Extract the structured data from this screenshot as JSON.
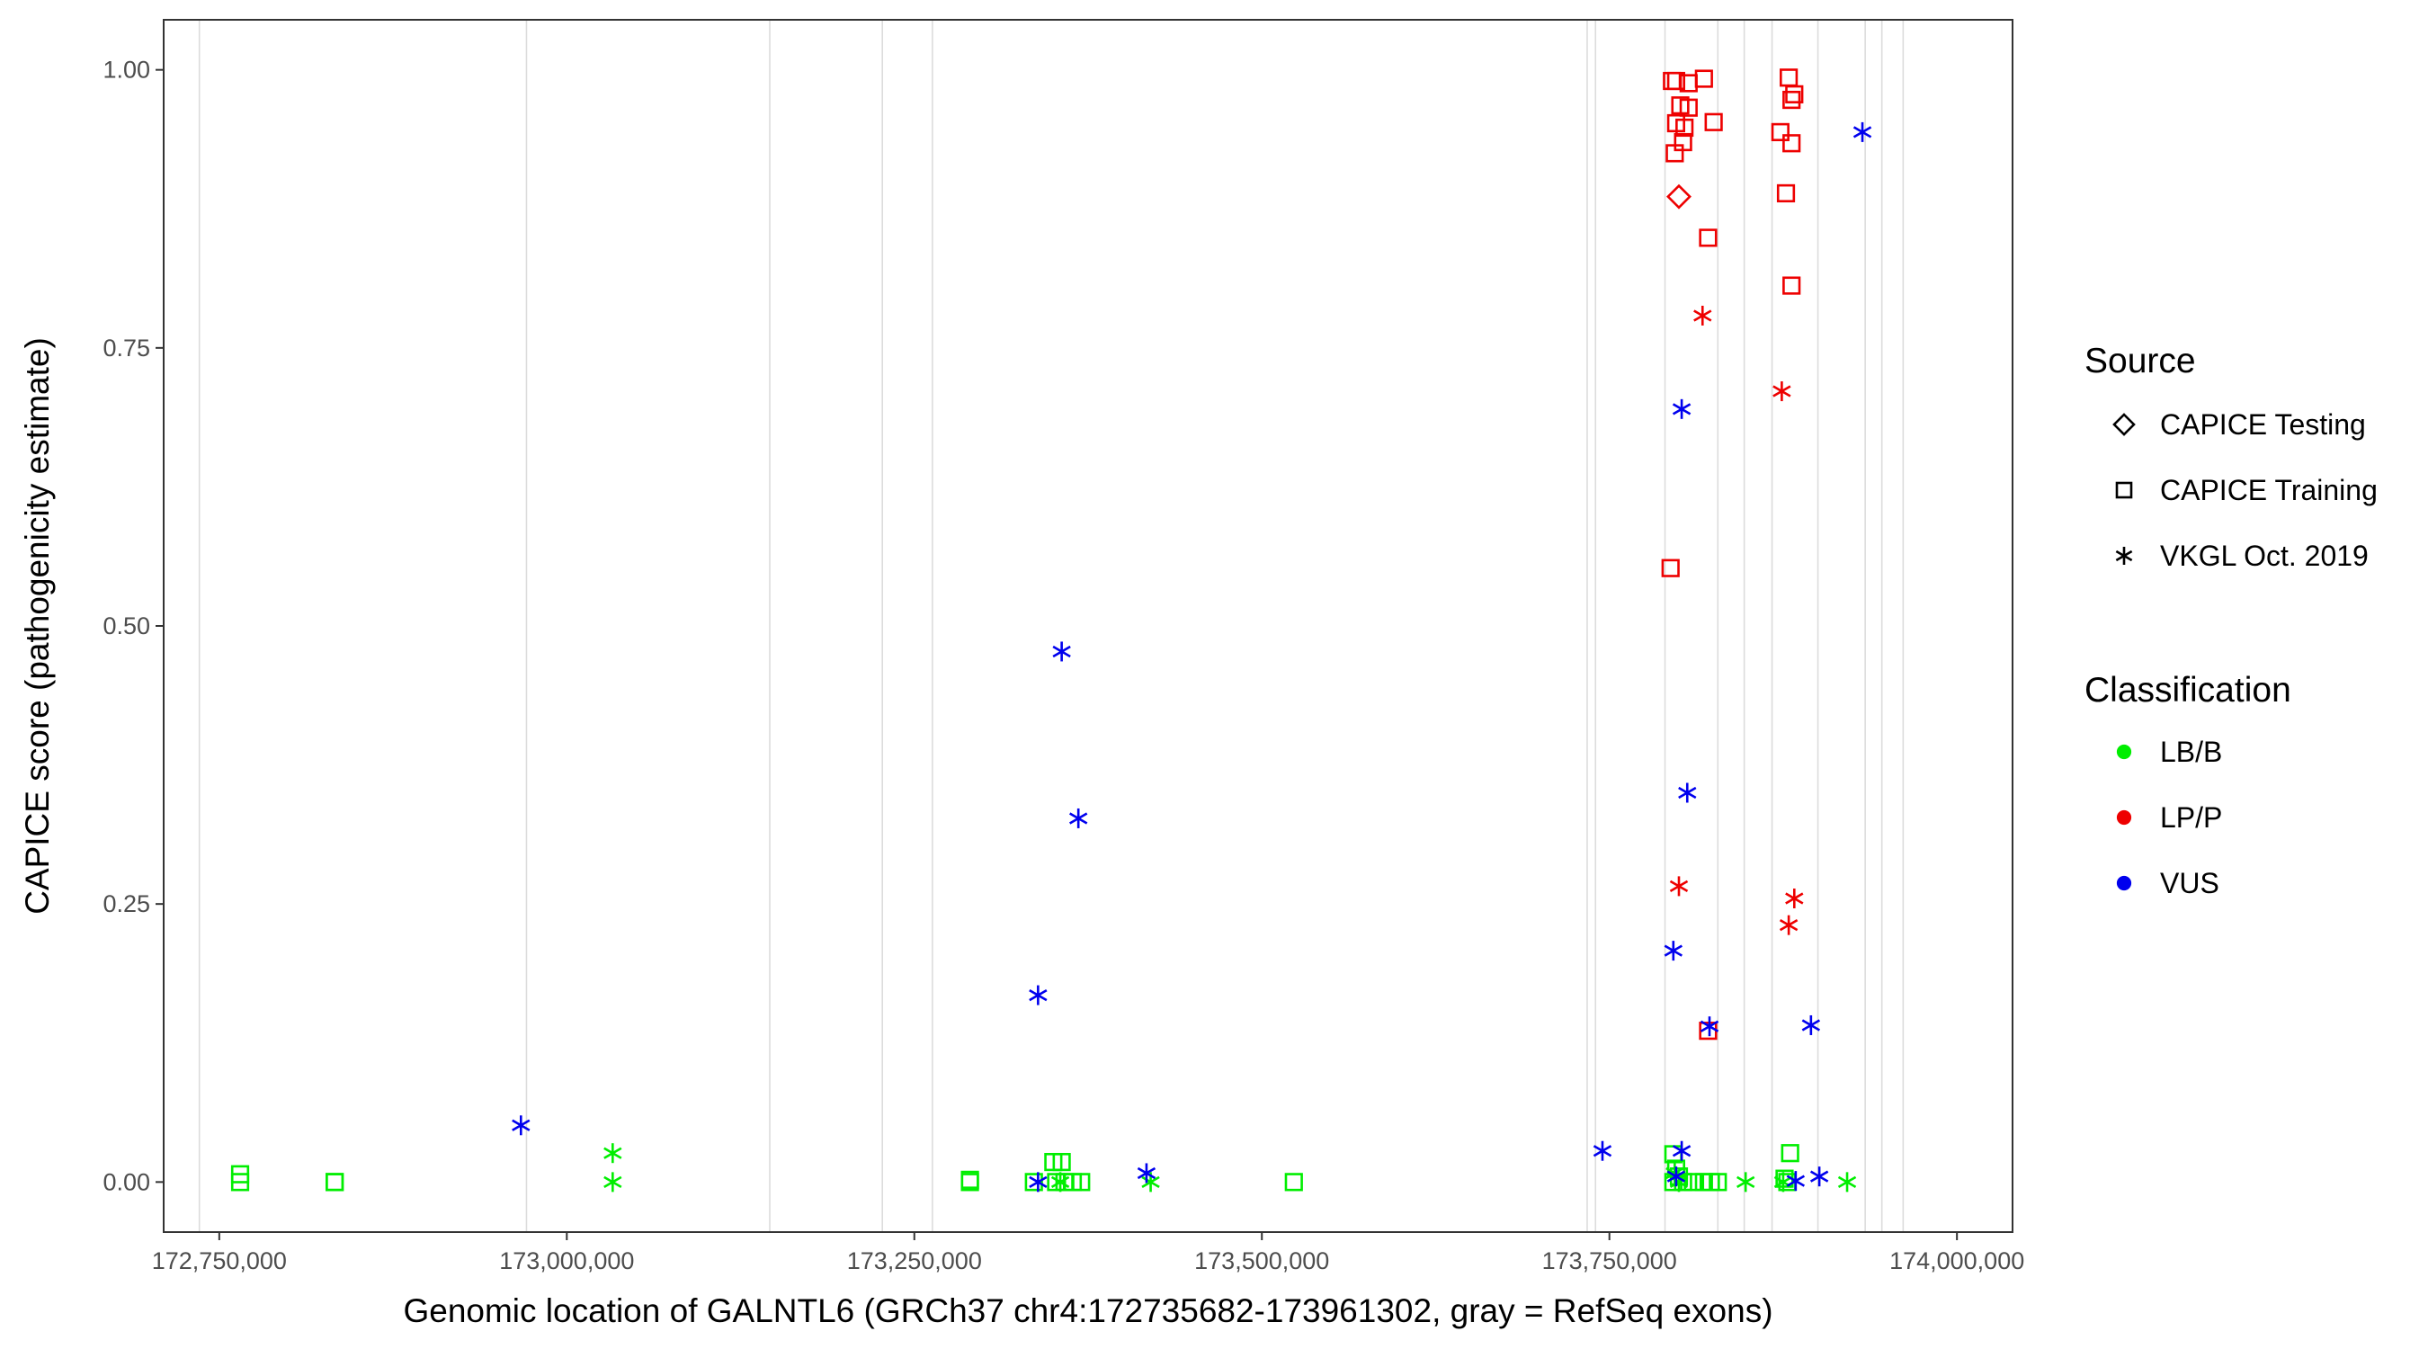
{
  "chart_data": {
    "type": "scatter",
    "xlabel": "Genomic location of GALNTL6 (GRCh37 chr4:172735682-173961302, gray = RefSeq exons)",
    "ylabel": "CAPICE score (pathogenicity estimate)",
    "xlim": [
      172710000,
      174040000
    ],
    "ylim": [
      -0.045,
      1.045
    ],
    "x_ticks": [
      172750000,
      173000000,
      173250000,
      173500000,
      173750000,
      174000000
    ],
    "x_tick_labels": [
      "172,750,000",
      "173,000,000",
      "173,250,000",
      "173,500,000",
      "173,750,000",
      "174,000,000"
    ],
    "y_ticks": [
      0,
      0.25,
      0.5,
      0.75,
      1
    ],
    "y_tick_labels": [
      "0.00",
      "0.25",
      "0.50",
      "0.75",
      "1.00"
    ],
    "exon_positions": [
      172735682,
      172971000,
      173146000,
      173227000,
      173263000,
      173734000,
      173740000,
      173790000,
      173828000,
      173847000,
      173867000,
      173900000,
      173934000,
      173946000,
      173961302
    ],
    "grid": false,
    "legend_position": "right",
    "legend": {
      "source_title": "Source",
      "source_items": [
        {
          "label": "CAPICE Testing",
          "shape": "diamond"
        },
        {
          "label": "CAPICE Training",
          "shape": "square"
        },
        {
          "label": "VKGL Oct. 2019",
          "shape": "asterisk"
        }
      ],
      "class_title": "Classification",
      "class_items": [
        {
          "label": "LB/B",
          "color": "#00ee00"
        },
        {
          "label": "LP/P",
          "color": "#ee0000"
        },
        {
          "label": "VUS",
          "color": "#0000ee"
        }
      ]
    },
    "series": [
      {
        "name": "LB/B",
        "color": "#00ee00",
        "points": [
          {
            "x": 172765000,
            "y": 0.007,
            "shape": "square"
          },
          {
            "x": 172765000,
            "y": 0.0,
            "shape": "square"
          },
          {
            "x": 172833000,
            "y": 0.0,
            "shape": "square"
          },
          {
            "x": 172833000,
            "y": 0.0,
            "shape": "square"
          },
          {
            "x": 173033000,
            "y": 0.026,
            "shape": "asterisk"
          },
          {
            "x": 173033000,
            "y": 0.0,
            "shape": "asterisk"
          },
          {
            "x": 173290000,
            "y": 0.002,
            "shape": "square"
          },
          {
            "x": 173290000,
            "y": 0.0,
            "shape": "square"
          },
          {
            "x": 173336000,
            "y": 0.0,
            "shape": "square"
          },
          {
            "x": 173350000,
            "y": 0.018,
            "shape": "square"
          },
          {
            "x": 173356000,
            "y": 0.018,
            "shape": "square"
          },
          {
            "x": 173352000,
            "y": 0.0,
            "shape": "square"
          },
          {
            "x": 173358000,
            "y": 0.0,
            "shape": "square"
          },
          {
            "x": 173364000,
            "y": 0.0,
            "shape": "square"
          },
          {
            "x": 173370000,
            "y": 0.0,
            "shape": "square"
          },
          {
            "x": 173355000,
            "y": 0.0,
            "shape": "asterisk"
          },
          {
            "x": 173420000,
            "y": 0.0,
            "shape": "asterisk"
          },
          {
            "x": 173523000,
            "y": 0.0,
            "shape": "square"
          },
          {
            "x": 173796000,
            "y": 0.025,
            "shape": "square"
          },
          {
            "x": 173798000,
            "y": 0.012,
            "shape": "square"
          },
          {
            "x": 173800000,
            "y": 0.005,
            "shape": "square"
          },
          {
            "x": 173796000,
            "y": 0.0,
            "shape": "square"
          },
          {
            "x": 173803000,
            "y": 0.0,
            "shape": "square"
          },
          {
            "x": 173810000,
            "y": 0.0,
            "shape": "square"
          },
          {
            "x": 173818000,
            "y": 0.0,
            "shape": "square"
          },
          {
            "x": 173823000,
            "y": 0.0,
            "shape": "square"
          },
          {
            "x": 173828000,
            "y": 0.0,
            "shape": "square"
          },
          {
            "x": 173797000,
            "y": 0.008,
            "shape": "asterisk"
          },
          {
            "x": 173800000,
            "y": 0.0,
            "shape": "asterisk"
          },
          {
            "x": 173848000,
            "y": 0.0,
            "shape": "asterisk"
          },
          {
            "x": 173876000,
            "y": 0.003,
            "shape": "square"
          },
          {
            "x": 173880000,
            "y": 0.026,
            "shape": "square"
          },
          {
            "x": 173878000,
            "y": 0.0,
            "shape": "square"
          },
          {
            "x": 173875000,
            "y": 0.0,
            "shape": "asterisk"
          },
          {
            "x": 173921000,
            "y": 0.0,
            "shape": "asterisk"
          }
        ]
      },
      {
        "name": "LP/P",
        "color": "#ee0000",
        "points": [
          {
            "x": 173795000,
            "y": 0.99,
            "shape": "square"
          },
          {
            "x": 173798000,
            "y": 0.99,
            "shape": "square"
          },
          {
            "x": 173807000,
            "y": 0.988,
            "shape": "square"
          },
          {
            "x": 173818000,
            "y": 0.992,
            "shape": "square"
          },
          {
            "x": 173801000,
            "y": 0.968,
            "shape": "square"
          },
          {
            "x": 173807000,
            "y": 0.966,
            "shape": "square"
          },
          {
            "x": 173798000,
            "y": 0.952,
            "shape": "square"
          },
          {
            "x": 173804000,
            "y": 0.948,
            "shape": "square"
          },
          {
            "x": 173825000,
            "y": 0.953,
            "shape": "square"
          },
          {
            "x": 173803000,
            "y": 0.935,
            "shape": "square"
          },
          {
            "x": 173797000,
            "y": 0.925,
            "shape": "square"
          },
          {
            "x": 173800000,
            "y": 0.886,
            "shape": "diamond"
          },
          {
            "x": 173821000,
            "y": 0.849,
            "shape": "square"
          },
          {
            "x": 173794000,
            "y": 0.552,
            "shape": "square"
          },
          {
            "x": 173879000,
            "y": 0.993,
            "shape": "square"
          },
          {
            "x": 173883000,
            "y": 0.978,
            "shape": "square"
          },
          {
            "x": 173881000,
            "y": 0.973,
            "shape": "square"
          },
          {
            "x": 173873000,
            "y": 0.944,
            "shape": "square"
          },
          {
            "x": 173881000,
            "y": 0.934,
            "shape": "square"
          },
          {
            "x": 173877000,
            "y": 0.889,
            "shape": "square"
          },
          {
            "x": 173881000,
            "y": 0.806,
            "shape": "square"
          },
          {
            "x": 173821000,
            "y": 0.136,
            "shape": "square"
          },
          {
            "x": 173817000,
            "y": 0.779,
            "shape": "asterisk"
          },
          {
            "x": 173874000,
            "y": 0.711,
            "shape": "asterisk"
          },
          {
            "x": 173800000,
            "y": 0.266,
            "shape": "asterisk"
          },
          {
            "x": 173883000,
            "y": 0.255,
            "shape": "asterisk"
          },
          {
            "x": 173879000,
            "y": 0.231,
            "shape": "asterisk"
          }
        ]
      },
      {
        "name": "VUS",
        "color": "#0000ee",
        "points": [
          {
            "x": 172967000,
            "y": 0.051,
            "shape": "asterisk"
          },
          {
            "x": 173356000,
            "y": 0.477,
            "shape": "asterisk"
          },
          {
            "x": 173368000,
            "y": 0.327,
            "shape": "asterisk"
          },
          {
            "x": 173339000,
            "y": 0.168,
            "shape": "asterisk"
          },
          {
            "x": 173339000,
            "y": 0.0,
            "shape": "asterisk"
          },
          {
            "x": 173417000,
            "y": 0.008,
            "shape": "asterisk"
          },
          {
            "x": 173745000,
            "y": 0.028,
            "shape": "asterisk"
          },
          {
            "x": 173802000,
            "y": 0.695,
            "shape": "asterisk"
          },
          {
            "x": 173806000,
            "y": 0.35,
            "shape": "asterisk"
          },
          {
            "x": 173796000,
            "y": 0.208,
            "shape": "asterisk"
          },
          {
            "x": 173822000,
            "y": 0.14,
            "shape": "asterisk"
          },
          {
            "x": 173802000,
            "y": 0.028,
            "shape": "asterisk"
          },
          {
            "x": 173798000,
            "y": 0.005,
            "shape": "asterisk"
          },
          {
            "x": 173932000,
            "y": 0.944,
            "shape": "asterisk"
          },
          {
            "x": 173895000,
            "y": 0.141,
            "shape": "asterisk"
          },
          {
            "x": 173884000,
            "y": 0.001,
            "shape": "asterisk"
          },
          {
            "x": 173901000,
            "y": 0.005,
            "shape": "asterisk"
          }
        ]
      }
    ]
  }
}
